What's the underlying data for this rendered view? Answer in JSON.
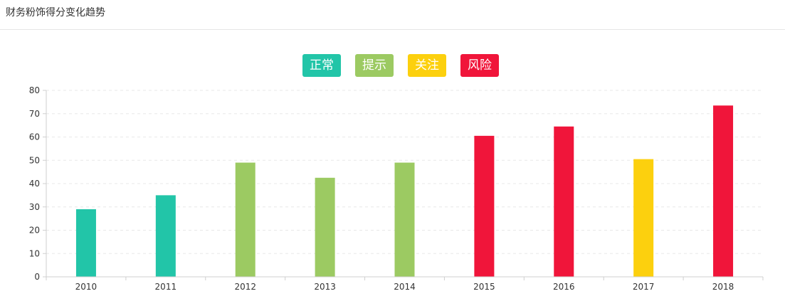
{
  "page": {
    "title": "财务粉饰得分变化趋势"
  },
  "legend": [
    {
      "label": "正常",
      "color": "#22c5a8"
    },
    {
      "label": "提示",
      "color": "#9cca62"
    },
    {
      "label": "关注",
      "color": "#fcd00e"
    },
    {
      "label": "风险",
      "color": "#f0153a"
    }
  ],
  "chart_data": {
    "type": "bar",
    "categories": [
      "2010",
      "2011",
      "2012",
      "2013",
      "2014",
      "2015",
      "2016",
      "2017",
      "2018"
    ],
    "values": [
      29,
      35,
      49,
      42.5,
      49,
      60.5,
      64.5,
      50.5,
      73.5
    ],
    "levels": [
      "正常",
      "正常",
      "提示",
      "提示",
      "提示",
      "风险",
      "风险",
      "关注",
      "风险"
    ],
    "ylim": [
      0,
      80
    ],
    "yticks": [
      0,
      10,
      20,
      30,
      40,
      50,
      60,
      70,
      80
    ],
    "grid": true,
    "legend_position": "top-center"
  }
}
